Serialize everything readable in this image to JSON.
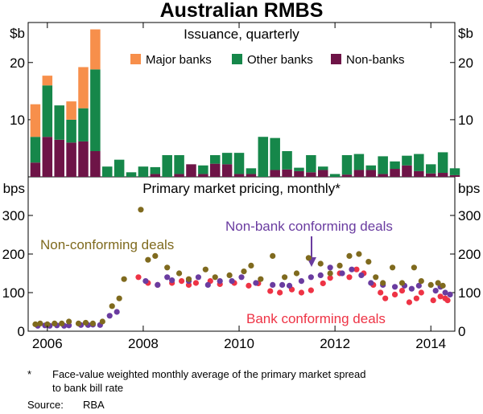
{
  "figure": {
    "title": "Australian RMBS",
    "footnote_marker": "*",
    "footnote_line1": "Face-value weighted monthly average of the primary market spread",
    "footnote_line2": "to bank bill rate",
    "source_label": "Source:",
    "source_value": "RBA"
  },
  "colors": {
    "major_banks": "#F78F4B",
    "other_banks": "#16874A",
    "non_banks": "#6E1447",
    "non_conforming": "#7F6A1E",
    "non_bank_conforming": "#6A3CA0",
    "bank_conforming": "#EE3345"
  },
  "chart_data": [
    {
      "type": "bar",
      "stacked": true,
      "title": "Issuance, quarterly",
      "ylabel_left": "$b",
      "ylabel_right": "$b",
      "ylim": [
        0,
        27
      ],
      "yticks": [
        10,
        20
      ],
      "xlim": [
        2005.6,
        2014.5
      ],
      "legend_position": "top",
      "categories": [
        "2005Q3",
        "2005Q4",
        "2006Q1",
        "2006Q2",
        "2006Q3",
        "2006Q4",
        "2007Q1",
        "2007Q2",
        "2007Q3",
        "2007Q4",
        "2008Q1",
        "2008Q2",
        "2008Q3",
        "2008Q4",
        "2009Q1",
        "2009Q2",
        "2009Q3",
        "2009Q4",
        "2010Q1",
        "2010Q2",
        "2010Q3",
        "2010Q4",
        "2011Q1",
        "2011Q2",
        "2011Q3",
        "2011Q4",
        "2012Q1",
        "2012Q2",
        "2012Q3",
        "2012Q4",
        "2013Q1",
        "2013Q2",
        "2013Q3",
        "2013Q4",
        "2014Q1",
        "2014Q2"
      ],
      "x": [
        2005.75,
        2006.0,
        2006.25,
        2006.5,
        2006.75,
        2007.0,
        2007.25,
        2007.5,
        2007.75,
        2008.0,
        2008.25,
        2008.5,
        2008.75,
        2009.0,
        2009.25,
        2009.5,
        2009.75,
        2010.0,
        2010.25,
        2010.5,
        2010.75,
        2011.0,
        2011.25,
        2011.5,
        2011.75,
        2012.0,
        2012.25,
        2012.5,
        2012.75,
        2013.0,
        2013.25,
        2013.5,
        2013.75,
        2014.0,
        2014.25,
        2014.5
      ],
      "series": [
        {
          "name": "Non-banks",
          "color_key": "non_banks",
          "values": [
            2.5,
            7.0,
            6.5,
            6.0,
            6.2,
            4.5,
            0,
            0,
            0,
            0,
            0.5,
            0,
            0.5,
            2.2,
            0.5,
            2.3,
            2.2,
            0.5,
            0.5,
            0,
            1.2,
            1.3,
            1.0,
            0.8,
            1.2,
            0,
            0.4,
            1.2,
            1.2,
            0.5,
            1.4,
            2.0,
            1.0,
            0.6,
            0.7,
            0.3
          ]
        },
        {
          "name": "Other banks",
          "color_key": "other_banks",
          "values": [
            4.5,
            9.0,
            6.0,
            4.0,
            5.8,
            14.3,
            1.8,
            3.0,
            0.8,
            1.8,
            1.2,
            3.8,
            3.3,
            0,
            1.5,
            1.5,
            2.0,
            3.7,
            1.0,
            7.0,
            5.6,
            3.2,
            0.6,
            3.0,
            0.6,
            0.5,
            3.4,
            2.8,
            0.8,
            3.1,
            1.3,
            1.7,
            3.0,
            1.6,
            3.6,
            1.2
          ]
        },
        {
          "name": "Major banks",
          "color_key": "major_banks",
          "values": [
            5.7,
            1.7,
            0,
            3.2,
            7.2,
            7.0,
            0,
            0,
            0,
            0,
            0,
            0,
            0,
            0,
            0,
            0,
            0,
            0,
            0,
            0,
            0,
            0,
            0,
            0,
            0,
            0,
            0,
            0,
            0,
            0,
            0,
            0,
            0,
            0,
            0,
            0
          ]
        }
      ]
    },
    {
      "type": "scatter",
      "title": "Primary market pricing, monthly*",
      "ylabel_left": "bps",
      "ylabel_right": "bps",
      "ylim": [
        0,
        400
      ],
      "yticks": [
        0,
        100,
        200,
        300
      ],
      "xlim": [
        2005.6,
        2014.5
      ],
      "xticks": [
        2006,
        2008,
        2010,
        2012,
        2014
      ],
      "xtick_labels": [
        "2006",
        "2008",
        "2010",
        "2012",
        "2014"
      ],
      "annotations": [
        "Non-conforming deals",
        "Non-bank conforming deals",
        "Bank conforming deals"
      ],
      "series": [
        {
          "name": "Bank conforming deals",
          "color_key": "bank_conforming",
          "points": [
            [
              2007.9,
              140
            ],
            [
              2008.1,
              125
            ],
            [
              2008.3,
              120
            ],
            [
              2008.6,
              125
            ],
            [
              2008.8,
              130
            ],
            [
              2008.95,
              120
            ],
            [
              2009.1,
              125
            ],
            [
              2009.4,
              130
            ],
            [
              2009.6,
              122
            ],
            [
              2009.9,
              125
            ],
            [
              2010.2,
              118
            ],
            [
              2010.4,
              124
            ],
            [
              2010.65,
              104
            ],
            [
              2010.85,
              100
            ],
            [
              2011.1,
              108
            ],
            [
              2011.3,
              100
            ],
            [
              2011.5,
              106
            ],
            [
              2011.75,
              124
            ],
            [
              2011.9,
              138
            ],
            [
              2012.1,
              150
            ],
            [
              2012.3,
              140
            ],
            [
              2012.45,
              160
            ],
            [
              2012.6,
              150
            ],
            [
              2012.8,
              120
            ],
            [
              2012.95,
              100
            ],
            [
              2013.05,
              85
            ],
            [
              2013.25,
              95
            ],
            [
              2013.4,
              105
            ],
            [
              2013.55,
              75
            ],
            [
              2013.7,
              85
            ],
            [
              2013.8,
              100
            ],
            [
              2014.05,
              80
            ],
            [
              2014.2,
              90
            ],
            [
              2014.3,
              85
            ],
            [
              2014.35,
              80
            ]
          ]
        },
        {
          "name": "Non-bank conforming deals",
          "color_key": "non_bank_conforming",
          "points": [
            [
              2005.8,
              14
            ],
            [
              2005.95,
              15
            ],
            [
              2006.05,
              14
            ],
            [
              2006.2,
              15
            ],
            [
              2006.35,
              14
            ],
            [
              2006.45,
              15
            ],
            [
              2006.7,
              16
            ],
            [
              2006.85,
              16
            ],
            [
              2006.95,
              17
            ],
            [
              2007.1,
              16
            ],
            [
              2007.3,
              40
            ],
            [
              2007.45,
              50
            ],
            [
              2008.05,
              130
            ],
            [
              2008.3,
              120
            ],
            [
              2008.5,
              140
            ],
            [
              2008.6,
              132
            ],
            [
              2008.95,
              130
            ],
            [
              2009.15,
              140
            ],
            [
              2009.35,
              120
            ],
            [
              2009.6,
              130
            ],
            [
              2009.85,
              130
            ],
            [
              2010.05,
              140
            ],
            [
              2010.35,
              125
            ],
            [
              2010.7,
              120
            ],
            [
              2010.9,
              120
            ],
            [
              2011.05,
              118
            ],
            [
              2011.3,
              130
            ],
            [
              2011.5,
              140
            ],
            [
              2011.7,
              145
            ],
            [
              2011.9,
              165
            ],
            [
              2012.15,
              150
            ],
            [
              2012.35,
              160
            ],
            [
              2012.55,
              145
            ],
            [
              2012.75,
              125
            ],
            [
              2013.0,
              120
            ],
            [
              2013.25,
              115
            ],
            [
              2013.45,
              118
            ],
            [
              2013.6,
              110
            ],
            [
              2013.75,
              118
            ],
            [
              2014.1,
              105
            ],
            [
              2014.2,
              115
            ],
            [
              2014.3,
              100
            ],
            [
              2014.4,
              95
            ]
          ]
        },
        {
          "name": "Non-conforming deals",
          "color_key": "non_conforming",
          "points": [
            [
              2005.75,
              18
            ],
            [
              2005.85,
              20
            ],
            [
              2006.0,
              18
            ],
            [
              2006.15,
              20
            ],
            [
              2006.3,
              20
            ],
            [
              2006.45,
              25
            ],
            [
              2006.65,
              20
            ],
            [
              2006.8,
              22
            ],
            [
              2006.95,
              20
            ],
            [
              2007.15,
              25
            ],
            [
              2007.35,
              65
            ],
            [
              2007.5,
              85
            ],
            [
              2007.6,
              135
            ],
            [
              2007.95,
              315
            ],
            [
              2008.1,
              185
            ],
            [
              2008.25,
              195
            ],
            [
              2008.5,
              165
            ],
            [
              2008.75,
              150
            ],
            [
              2008.95,
              135
            ],
            [
              2009.3,
              160
            ],
            [
              2009.5,
              140
            ],
            [
              2009.8,
              145
            ],
            [
              2010.1,
              155
            ],
            [
              2010.25,
              170
            ],
            [
              2010.45,
              135
            ],
            [
              2010.7,
              195
            ],
            [
              2010.95,
              140
            ],
            [
              2011.2,
              150
            ],
            [
              2011.45,
              190
            ],
            [
              2011.7,
              175
            ],
            [
              2011.9,
              150
            ],
            [
              2012.1,
              170
            ],
            [
              2012.3,
              195
            ],
            [
              2012.5,
              200
            ],
            [
              2012.7,
              180
            ],
            [
              2012.85,
              140
            ],
            [
              2013.0,
              125
            ],
            [
              2013.2,
              165
            ],
            [
              2013.4,
              125
            ],
            [
              2013.65,
              165
            ],
            [
              2013.8,
              130
            ],
            [
              2014.0,
              120
            ],
            [
              2014.15,
              125
            ],
            [
              2014.25,
              118
            ]
          ]
        }
      ]
    }
  ]
}
